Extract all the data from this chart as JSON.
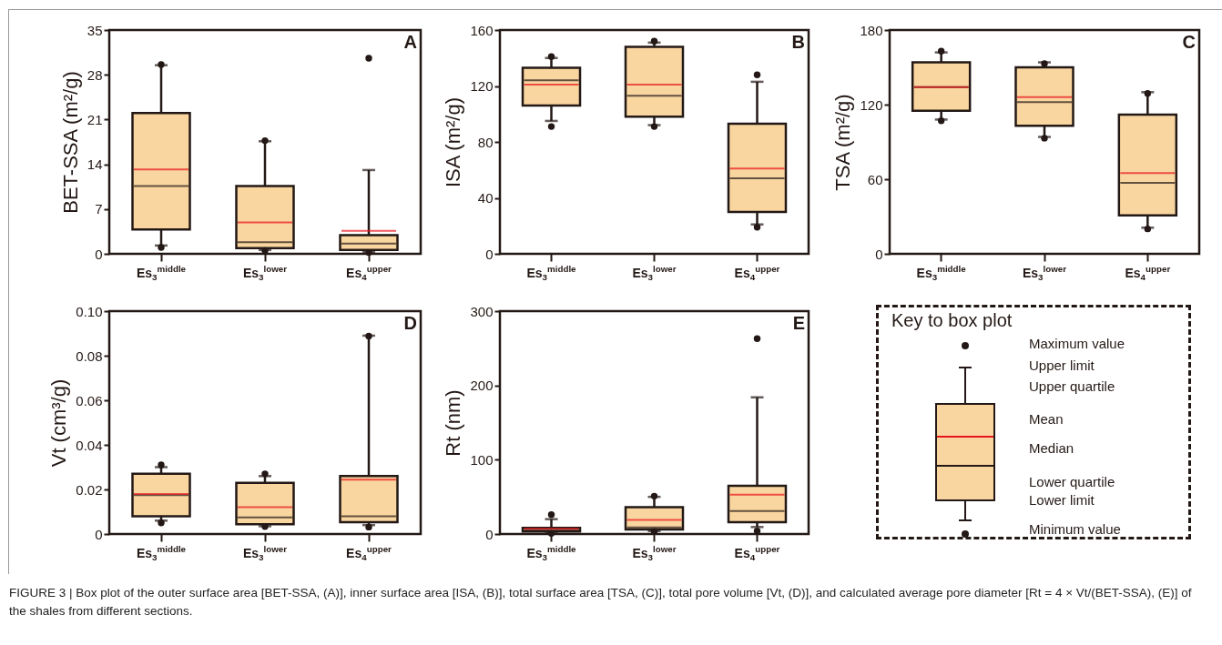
{
  "chart_data": [
    {
      "type": "box",
      "ylabel": "BET-SSA (m²/g)",
      "categories": [
        "Es$_{3}$$^{middle}$",
        "Es$_{3}$$^{lower}$",
        "Es$_{4}$$^{upper}$"
      ],
      "ylim": [
        0,
        35
      ],
      "yticks": [
        0,
        7,
        14,
        21,
        28,
        35
      ],
      "annotations": [
        "A"
      ],
      "series": [
        {
          "color": "#f9d6a0",
          "boxes": [
            {
              "low": 1.3,
              "q1": 3.8,
              "median": 10.6,
              "q3": 22.0,
              "high": 29.5,
              "mean": 13.2,
              "outliers": [
                29.6,
                1.0
              ]
            },
            {
              "low": 0.6,
              "q1": 0.9,
              "median": 1.8,
              "q3": 10.6,
              "high": 17.6,
              "mean": 4.9,
              "outliers": [
                17.7,
                0.5
              ]
            },
            {
              "low": 0.3,
              "q1": 0.6,
              "median": 1.6,
              "q3": 2.9,
              "high": 13.1,
              "mean": 3.6,
              "outliers": [
                30.6,
                0.2
              ]
            }
          ]
        }
      ]
    },
    {
      "type": "box",
      "ylabel": "ISA (m²/g)",
      "categories": [
        "Es$_{3}$$^{middle}$",
        "Es$_{3}$$^{lower}$",
        "Es$_{4}$$^{upper}$"
      ],
      "ylim": [
        0,
        160
      ],
      "yticks": [
        0,
        40,
        80,
        120,
        160
      ],
      "annotations": [
        "B"
      ],
      "series": [
        {
          "color": "#f9d6a0",
          "boxes": [
            {
              "low": 95,
              "q1": 106,
              "median": 124,
              "q3": 133,
              "high": 140,
              "mean": 121,
              "outliers": [
                141,
                91
              ]
            },
            {
              "low": 92,
              "q1": 98,
              "median": 113,
              "q3": 148,
              "high": 151,
              "mean": 121,
              "outliers": [
                152,
                91
              ]
            },
            {
              "low": 21,
              "q1": 30,
              "median": 54,
              "q3": 93,
              "high": 123,
              "mean": 61,
              "outliers": [
                128,
                19
              ]
            }
          ]
        }
      ]
    },
    {
      "type": "box",
      "ylabel": "TSA (m²/g)",
      "categories": [
        "Es$_{3}$$^{middle}$",
        "Es$_{3}$$^{lower}$",
        "Es$_{4}$$^{upper}$"
      ],
      "ylim": [
        0,
        180
      ],
      "yticks": [
        0,
        60,
        120,
        180
      ],
      "annotations": [
        "C"
      ],
      "series": [
        {
          "color": "#f9d6a0",
          "boxes": [
            {
              "low": 108,
              "q1": 115,
              "median": 134,
              "q3": 154,
              "high": 162,
              "mean": 134,
              "outliers": [
                163,
                107
              ]
            },
            {
              "low": 94,
              "q1": 103,
              "median": 122,
              "q3": 150,
              "high": 154,
              "mean": 126,
              "outliers": [
                153,
                93
              ]
            },
            {
              "low": 21,
              "q1": 31,
              "median": 57,
              "q3": 112,
              "high": 130,
              "mean": 65,
              "outliers": [
                129,
                20
              ]
            }
          ]
        }
      ]
    },
    {
      "type": "box",
      "ylabel": "Vt (cm³/g)",
      "categories": [
        "Es$_{3}$$^{middle}$",
        "Es$_{3}$$^{lower}$",
        "Es$_{4}$$^{upper}$"
      ],
      "ylim": [
        0,
        0.1
      ],
      "yticks": [
        0,
        0.02,
        0.04,
        0.06,
        0.08,
        {
          "value": 0.1,
          "label": "0.10"
        }
      ],
      "annotations": [
        "D"
      ],
      "series": [
        {
          "color": "#f9d6a0",
          "boxes": [
            {
              "low": 0.006,
              "q1": 0.008,
              "median": 0.0175,
              "q3": 0.027,
              "high": 0.03,
              "mean": 0.018,
              "outliers": [
                0.031,
                0.005
              ]
            },
            {
              "low": 0.0035,
              "q1": 0.0044,
              "median": 0.0075,
              "q3": 0.023,
              "high": 0.026,
              "mean": 0.012,
              "outliers": [
                0.027,
                0.0034
              ]
            },
            {
              "low": 0.004,
              "q1": 0.0053,
              "median": 0.008,
              "q3": 0.026,
              "high": 0.089,
              "mean": 0.0244,
              "outliers": [
                0.0888,
                0.0031
              ]
            }
          ]
        }
      ]
    },
    {
      "type": "box",
      "ylabel": "Rt (nm)",
      "categories": [
        "Es$_{3}$$^{middle}$",
        "Es$_{3}$$^{lower}$",
        "Es$_{4}$$^{upper}$"
      ],
      "ylim": [
        0,
        300
      ],
      "yticks": [
        0,
        100,
        200,
        300
      ],
      "annotations": [
        "E"
      ],
      "series": [
        {
          "color": "#f9d6a0",
          "boxes": [
            {
              "low": 1.5,
              "q1": 3.3,
              "median": 5,
              "q3": 8.2,
              "high": 20,
              "mean": 7,
              "outliers": [
                26,
                0.8
              ]
            },
            {
              "low": 4,
              "q1": 6,
              "median": 9,
              "q3": 36,
              "high": 50,
              "mean": 19,
              "outliers": [
                51,
                3.3
              ]
            },
            {
              "low": 9.4,
              "q1": 16,
              "median": 31,
              "q3": 65,
              "high": 184,
              "mean": 53,
              "outliers": [
                263,
                4
              ]
            }
          ]
        }
      ]
    },
    {
      "type": "other",
      "title": "Key to box plot",
      "annotations": [
        "Maximum value",
        "Upper limit",
        "Upper quartile",
        "Mean",
        "Median",
        "Lower quartile",
        "Lower limit",
        "Minimum value"
      ]
    },
    {
      "type": "other",
      "annotations": [
        "FIGURE 3 | Box plot of the outer surface area [BET-SSA, (A)], inner surface area [ISA, (B)], total surface area [TSA, (C)], total pore volume [Vt, (D)], and calculated average pore diameter [Rt = 4 × Vt/(BET-SSA), (E)] of the shales from different sections."
      ]
    }
  ]
}
